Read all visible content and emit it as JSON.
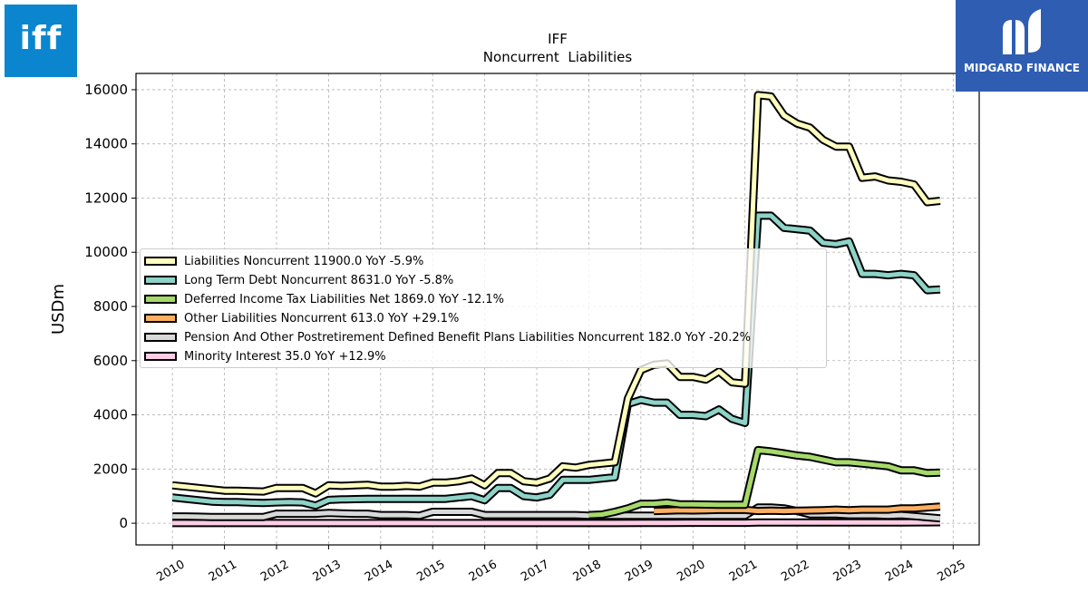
{
  "logos": {
    "company": "iff",
    "brand": "MIDGARD FINANCE"
  },
  "chart_data": {
    "type": "line",
    "title": "IFF",
    "subtitle": "Noncurrent  Liabilities",
    "ylabel": "USDm",
    "xlabel": "",
    "ylim": [
      -800,
      16600
    ],
    "xlim": [
      2009.3,
      2025.5
    ],
    "yticks": [
      0,
      2000,
      4000,
      6000,
      8000,
      10000,
      12000,
      14000,
      16000
    ],
    "xticks": [
      2010,
      2011,
      2012,
      2013,
      2014,
      2015,
      2016,
      2017,
      2018,
      2019,
      2020,
      2021,
      2022,
      2023,
      2024,
      2025
    ],
    "grid": true,
    "legend_position": "center-left",
    "series": [
      {
        "name": "Liabilities Noncurrent",
        "legend": "Liabilities Noncurrent  11900.0 YoY -5.9%",
        "color": "#ffffbf",
        "x": [
          2010.0,
          2010.25,
          2010.5,
          2010.75,
          2011.0,
          2011.25,
          2011.5,
          2011.75,
          2012.0,
          2012.25,
          2012.5,
          2012.75,
          2013.0,
          2013.25,
          2013.5,
          2013.75,
          2014.0,
          2014.25,
          2014.5,
          2014.75,
          2015.0,
          2015.25,
          2015.5,
          2015.75,
          2016.0,
          2016.25,
          2016.5,
          2016.75,
          2017.0,
          2017.25,
          2017.5,
          2017.75,
          2018.0,
          2018.25,
          2018.5,
          2018.75,
          2019.0,
          2019.25,
          2019.5,
          2019.75,
          2020.0,
          2020.25,
          2020.5,
          2020.75,
          2021.0,
          2021.25,
          2021.5,
          2021.75,
          2022.0,
          2022.25,
          2022.5,
          2022.75,
          2023.0,
          2023.25,
          2023.5,
          2023.75,
          2024.0,
          2024.25,
          2024.5,
          2024.75
        ],
        "y": [
          1400,
          1350,
          1300,
          1250,
          1200,
          1200,
          1180,
          1170,
          1300,
          1300,
          1300,
          1100,
          1400,
          1380,
          1400,
          1420,
          1350,
          1350,
          1380,
          1350,
          1500,
          1500,
          1550,
          1650,
          1400,
          1850,
          1850,
          1550,
          1500,
          1650,
          2100,
          2050,
          2150,
          2200,
          2250,
          4600,
          5650,
          5850,
          5900,
          5400,
          5400,
          5300,
          5600,
          5200,
          5150,
          15800,
          15750,
          15050,
          14750,
          14600,
          14150,
          13900,
          13900,
          12750,
          12800,
          12650,
          12600,
          12500,
          11850,
          11900
        ]
      },
      {
        "name": "Long Term Debt Noncurrent",
        "legend": "Long Term Debt Noncurrent  8631.0 YoY -5.8%",
        "color": "#8dd3c7",
        "x": [
          2010.0,
          2010.25,
          2010.5,
          2010.75,
          2011.0,
          2011.25,
          2011.5,
          2011.75,
          2012.0,
          2012.25,
          2012.5,
          2012.75,
          2013.0,
          2013.25,
          2013.5,
          2013.75,
          2014.0,
          2014.25,
          2014.5,
          2014.75,
          2015.0,
          2015.25,
          2015.5,
          2015.75,
          2016.0,
          2016.25,
          2016.5,
          2016.75,
          2017.0,
          2017.25,
          2017.5,
          2017.75,
          2018.0,
          2018.25,
          2018.5,
          2018.75,
          2019.0,
          2019.25,
          2019.5,
          2019.75,
          2020.0,
          2020.25,
          2020.5,
          2020.75,
          2021.0,
          2021.25,
          2021.5,
          2021.75,
          2022.0,
          2022.25,
          2022.5,
          2022.75,
          2023.0,
          2023.25,
          2023.5,
          2023.75,
          2024.0,
          2024.25,
          2024.5,
          2024.75
        ],
        "y": [
          950,
          900,
          850,
          800,
          780,
          780,
          760,
          750,
          770,
          780,
          770,
          650,
          860,
          880,
          890,
          900,
          900,
          900,
          900,
          900,
          900,
          900,
          950,
          1000,
          850,
          1300,
          1300,
          1000,
          950,
          1050,
          1600,
          1600,
          1600,
          1650,
          1700,
          4400,
          4550,
          4450,
          4450,
          4000,
          4000,
          3950,
          4200,
          3850,
          3700,
          11350,
          11350,
          10900,
          10850,
          10800,
          10350,
          10300,
          10400,
          9200,
          9200,
          9150,
          9200,
          9150,
          8600,
          8631
        ]
      },
      {
        "name": "Deferred Income Tax Liabilities Net",
        "legend": "Deferred Income Tax Liabilities Net  1869.0 YoY -12.1%",
        "color": "#a6d96a",
        "x": [
          2018.0,
          2018.25,
          2018.5,
          2018.75,
          2019.0,
          2019.25,
          2019.5,
          2019.75,
          2020.0,
          2020.25,
          2020.5,
          2020.75,
          2021.0,
          2021.25,
          2021.5,
          2021.75,
          2022.0,
          2022.25,
          2022.5,
          2022.75,
          2023.0,
          2023.25,
          2023.5,
          2023.75,
          2024.0,
          2024.25,
          2024.5,
          2024.75
        ],
        "y": [
          300,
          320,
          420,
          550,
          720,
          720,
          760,
          700,
          700,
          690,
          680,
          680,
          680,
          2700,
          2650,
          2580,
          2500,
          2450,
          2350,
          2250,
          2250,
          2200,
          2150,
          2100,
          1950,
          1950,
          1850,
          1869
        ]
      },
      {
        "name": "Other Liabilities Noncurrent",
        "legend": "Other Liabilities Noncurrent  613.0 YoY +29.1%",
        "color": "#fdae61",
        "x": [
          2019.25,
          2019.5,
          2019.75,
          2020.0,
          2020.25,
          2020.5,
          2020.75,
          2021.0,
          2021.25,
          2021.5,
          2021.75,
          2022.0,
          2022.25,
          2022.5,
          2022.75,
          2023.0,
          2023.25,
          2023.5,
          2023.75,
          2024.0,
          2024.25,
          2024.5,
          2024.75
        ],
        "y": [
          450,
          460,
          480,
          470,
          480,
          490,
          490,
          490,
          450,
          460,
          450,
          460,
          470,
          480,
          500,
          480,
          500,
          500,
          500,
          550,
          550,
          580,
          613
        ]
      },
      {
        "name": "Pension And Other Postretirement Defined Benefit Plans Liabilities Noncurrent",
        "legend": "Pension And Other Postretirement Defined Benefit Plans Liabilities Noncurrent  182.0 YoY -20.2%",
        "color": "#d9d9d9",
        "x": [
          2010.0,
          2010.25,
          2010.5,
          2010.75,
          2011.0,
          2011.25,
          2011.5,
          2011.75,
          2012.0,
          2012.25,
          2012.5,
          2012.75,
          2013.0,
          2013.25,
          2013.5,
          2013.75,
          2014.0,
          2014.25,
          2014.5,
          2014.75,
          2015.0,
          2015.25,
          2015.5,
          2015.75,
          2016.0,
          2016.25,
          2016.5,
          2016.75,
          2017.0,
          2017.25,
          2017.5,
          2017.75,
          2018.0,
          2018.25,
          2018.5,
          2018.75,
          2019.0,
          2019.25,
          2019.5,
          2019.75,
          2020.0,
          2020.25,
          2020.5,
          2020.75,
          2021.0,
          2021.25,
          2021.5,
          2021.75,
          2022.0,
          2022.25,
          2022.5,
          2022.75,
          2023.0,
          2023.25,
          2023.5,
          2023.75,
          2024.0,
          2024.25,
          2024.5,
          2024.75
        ],
        "y": [
          250,
          250,
          240,
          230,
          230,
          230,
          230,
          230,
          350,
          350,
          350,
          350,
          380,
          360,
          350,
          350,
          300,
          300,
          300,
          280,
          420,
          420,
          420,
          420,
          300,
          300,
          300,
          300,
          300,
          300,
          300,
          300,
          280,
          280,
          280,
          280,
          280,
          280,
          280,
          280,
          280,
          280,
          280,
          280,
          280,
          580,
          580,
          550,
          450,
          330,
          330,
          330,
          300,
          300,
          300,
          280,
          300,
          260,
          220,
          182
        ]
      },
      {
        "name": "Minority Interest",
        "legend": "Minority Interest  35.0 YoY +12.9%",
        "color": "#fccde5",
        "x": [
          2010.0,
          2010.5,
          2011.0,
          2011.5,
          2012.0,
          2012.5,
          2013.0,
          2013.5,
          2014.0,
          2014.5,
          2015.0,
          2015.5,
          2016.0,
          2016.5,
          2017.0,
          2017.5,
          2018.0,
          2018.5,
          2019.0,
          2019.5,
          2020.0,
          2020.5,
          2021.0,
          2021.25,
          2021.5,
          2022.0,
          2022.5,
          2023.0,
          2023.5,
          2024.0,
          2024.5,
          2024.75
        ],
        "y": [
          5,
          5,
          5,
          5,
          5,
          5,
          5,
          5,
          5,
          5,
          5,
          5,
          5,
          5,
          5,
          5,
          5,
          5,
          10,
          10,
          15,
          15,
          15,
          30,
          30,
          30,
          30,
          30,
          30,
          30,
          32,
          35
        ]
      }
    ]
  }
}
